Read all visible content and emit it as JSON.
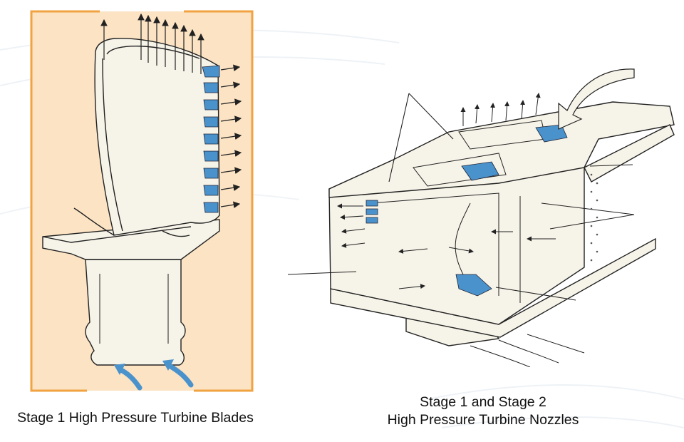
{
  "colors": {
    "panel_background": "#fbe3c4",
    "frame": "#f0a340",
    "cooling_passage_blue": "#4a92cc",
    "part_fill": "#f6f3e8",
    "line": "#222222"
  },
  "left_figure": {
    "caption": "Stage 1 High Pressure Turbine Blades"
  },
  "right_figure": {
    "caption_line1": "Stage 1 and Stage 2",
    "caption_line2": "High Pressure Turbine Nozzles"
  }
}
